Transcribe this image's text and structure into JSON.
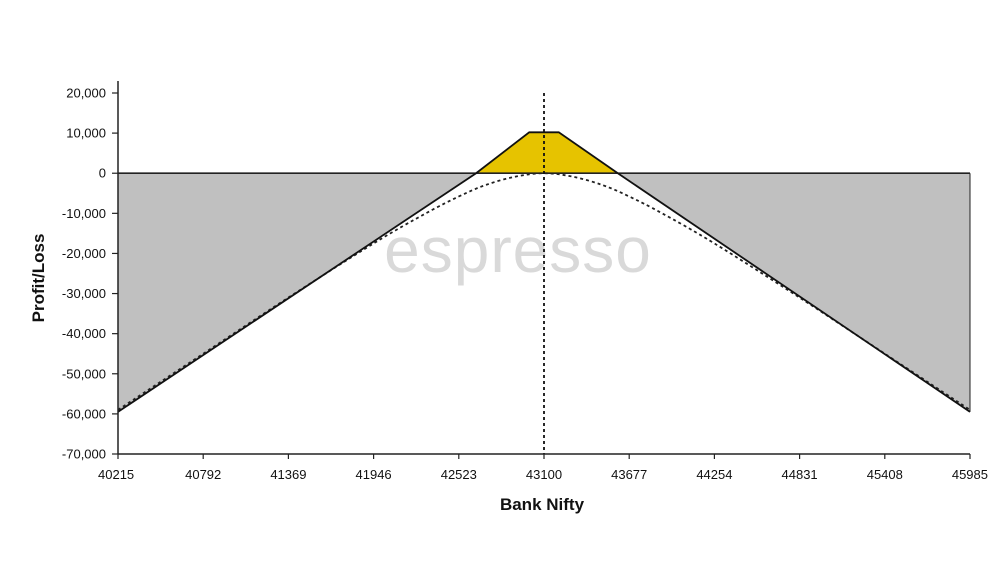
{
  "chart_data": {
    "type": "area",
    "xlabel": "Bank Nifty",
    "ylabel": "Profit/Loss",
    "xlim": [
      40215,
      45985
    ],
    "ylim": [
      -70000,
      20000
    ],
    "x_ticks": [
      40215,
      40792,
      41369,
      41946,
      42523,
      43100,
      43677,
      44254,
      44831,
      45408,
      45985
    ],
    "y_ticks": [
      {
        "value": 20000,
        "label": "20,000"
      },
      {
        "value": 10000,
        "label": "10,000"
      },
      {
        "value": 0,
        "label": "0"
      },
      {
        "value": -10000,
        "label": "-10,000"
      },
      {
        "value": -20000,
        "label": "-20,000"
      },
      {
        "value": -30000,
        "label": "-30,000"
      },
      {
        "value": -40000,
        "label": "-40,000"
      },
      {
        "value": -50000,
        "label": "-50,000"
      },
      {
        "value": -60000,
        "label": "-60,000"
      },
      {
        "value": -70000,
        "label": "-70,000"
      }
    ],
    "vertical_marker_x": 43100,
    "grid": false,
    "series": [
      {
        "style": "solid",
        "x": [
          40215,
          42640,
          43000,
          43200,
          43600,
          45985
        ],
        "y": [
          -59500,
          0,
          10200,
          10200,
          0,
          -59500
        ]
      },
      {
        "style": "dotted",
        "x": [
          40215,
          40792,
          41369,
          41946,
          42300,
          42523,
          42700,
          42900,
          43100,
          43300,
          43500,
          43677,
          43900,
          44254,
          44831,
          45408,
          45985
        ],
        "y": [
          -59000,
          -45000,
          -31000,
          -17500,
          -10000,
          -5800,
          -3000,
          -900,
          0,
          -900,
          -3000,
          -5800,
          -10000,
          -17500,
          -31000,
          -45000,
          -59000
        ]
      }
    ],
    "fill_colors": {
      "profit": "#e6c300",
      "loss": "#c0c0c0"
    },
    "watermark": "espresso"
  }
}
